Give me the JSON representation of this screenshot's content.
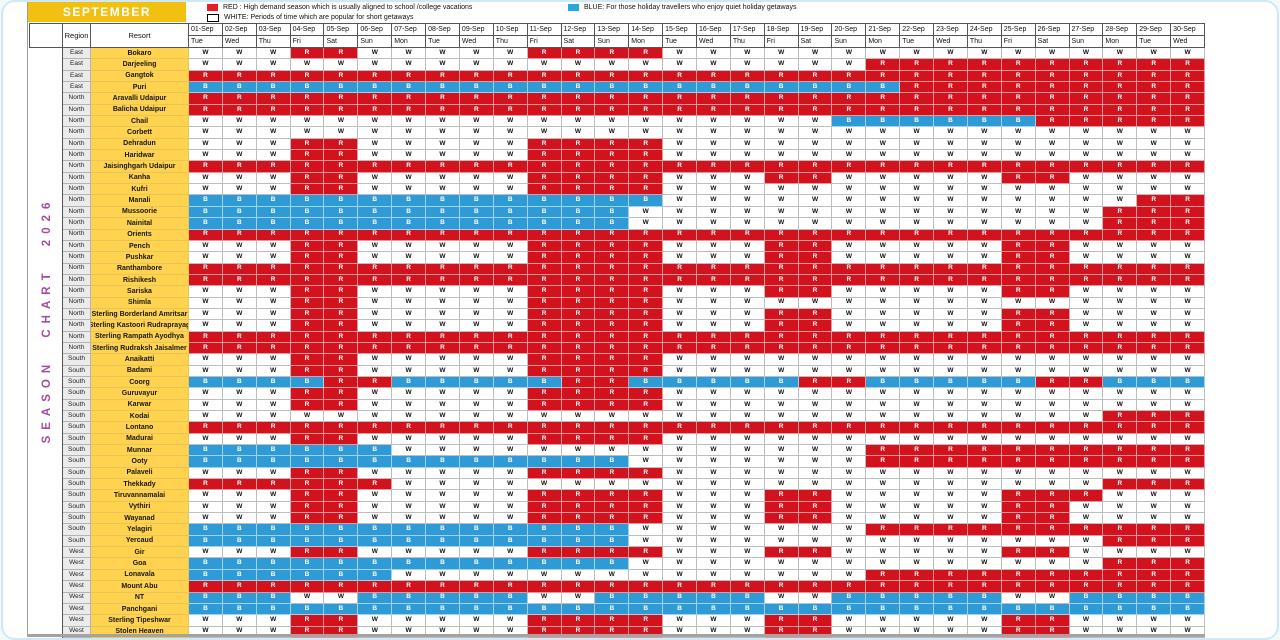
{
  "banner": {
    "month": "SEPTEMBER"
  },
  "vertical_title": "SEASON CHART 2026",
  "legend": [
    {
      "name": "red",
      "swatch": "#EC1C24",
      "text": "RED : High demand season which is usually aligned to school /college vacations"
    },
    {
      "name": "white",
      "swatch": "#FFFFFF",
      "text": "WHITE: Periods of time which are popular for short getaways"
    },
    {
      "name": "blue",
      "swatch": "#29A8DE",
      "text": "BLUE: For those holiday travellers who enjoy quiet holiday getaways"
    }
  ],
  "colors": {
    "banner_bg": "#F2C011",
    "resort_cell_bg": "#FFD34F",
    "region_cell_bg": "#EBEBEB",
    "red_cell": "#D2131E",
    "blue_cell": "#2E9BD6",
    "white_cell": "#FFFFFF",
    "vertical_title": "#A64C9F"
  },
  "chart_data": {
    "type": "heatmap",
    "title": "SEASON CHART 2026",
    "subtitle": "SEPTEMBER",
    "legend_position": "top",
    "value_legend": {
      "R": "High demand season",
      "W": "Popular for short getaways",
      "B": "Quiet holiday getaways"
    },
    "table": {
      "region_header": "Region",
      "resort_header": "Resort",
      "dates": [
        {
          "date": "01-Sep",
          "day": "Tue"
        },
        {
          "date": "02-Sep",
          "day": "Wed"
        },
        {
          "date": "03-Sep",
          "day": "Thu"
        },
        {
          "date": "04-Sep",
          "day": "Fri"
        },
        {
          "date": "05-Sep",
          "day": "Sat"
        },
        {
          "date": "06-Sep",
          "day": "Sun"
        },
        {
          "date": "07-Sep",
          "day": "Mon"
        },
        {
          "date": "08-Sep",
          "day": "Tue"
        },
        {
          "date": "09-Sep",
          "day": "Wed"
        },
        {
          "date": "10-Sep",
          "day": "Thu"
        },
        {
          "date": "11-Sep",
          "day": "Fri"
        },
        {
          "date": "12-Sep",
          "day": "Sat"
        },
        {
          "date": "13-Sep",
          "day": "Sun"
        },
        {
          "date": "14-Sep",
          "day": "Mon"
        },
        {
          "date": "15-Sep",
          "day": "Tue"
        },
        {
          "date": "16-Sep",
          "day": "Wed"
        },
        {
          "date": "17-Sep",
          "day": "Thu"
        },
        {
          "date": "18-Sep",
          "day": "Fri"
        },
        {
          "date": "19-Sep",
          "day": "Sat"
        },
        {
          "date": "20-Sep",
          "day": "Sun"
        },
        {
          "date": "21-Sep",
          "day": "Mon"
        },
        {
          "date": "22-Sep",
          "day": "Tue"
        },
        {
          "date": "23-Sep",
          "day": "Wed"
        },
        {
          "date": "24-Sep",
          "day": "Thu"
        },
        {
          "date": "25-Sep",
          "day": "Fri"
        },
        {
          "date": "26-Sep",
          "day": "Sat"
        },
        {
          "date": "27-Sep",
          "day": "Sun"
        },
        {
          "date": "28-Sep",
          "day": "Mon"
        },
        {
          "date": "29-Sep",
          "day": "Tue"
        },
        {
          "date": "30-Sep",
          "day": "Wed"
        }
      ],
      "rows": [
        {
          "region": "East",
          "resort": "Bokaro",
          "cells": "WWWRRWWWWWRRRRWWWWWWWWWWWWWWWW"
        },
        {
          "region": "East",
          "resort": "Darjeeling",
          "cells": "WWWWWWWWWWWWWWWWWWWWRRRRRRRRRR"
        },
        {
          "region": "East",
          "resort": "Gangtok",
          "cells": "RRRRRRRRRRRRRRRRRRRRRRRRRRRRRR"
        },
        {
          "region": "East",
          "resort": "Puri",
          "cells": "BBBBBBBBBBBBBBBBBBBBBRRRRRRRRR"
        },
        {
          "region": "North",
          "resort": "Aravalli Udaipur",
          "cells": "RRRRRRRRRRRRRRRRRRRRRRRRRRRRRR"
        },
        {
          "region": "North",
          "resort": "Balicha Udaipur",
          "cells": "RRRRRRRRRRRRRRRRRRRRRRRRRRRRRR"
        },
        {
          "region": "North",
          "resort": "Chail",
          "cells": "WWWWWWWWWWWWWWWWWWWBBBBBBRRRRR"
        },
        {
          "region": "North",
          "resort": "Corbett",
          "cells": "WWWWWWWWWWWWWWWWWWWWWWWWWWWWWW"
        },
        {
          "region": "North",
          "resort": "Dehradun",
          "cells": "WWWRRWWWWWRRRRWWWWWWWWWWWWWWWW"
        },
        {
          "region": "North",
          "resort": "Haridwar",
          "cells": "WWWRRWWWWWRRRRWWWWWWWWWWWWWWWW"
        },
        {
          "region": "North",
          "resort": "Jaisinghgarh Udaipur",
          "cells": "RRRRRRRRRRRRRRRRRRRRRRRRRRRRRR"
        },
        {
          "region": "North",
          "resort": "Kanha",
          "cells": "WWWRRWWWWWRRRRWWWRRWWWWWRRWWWW"
        },
        {
          "region": "North",
          "resort": "Kufri",
          "cells": "WWWRRWWWWWRRRRWWWWWWWWWWWWWWWW"
        },
        {
          "region": "North",
          "resort": "Manali",
          "cells": "BBBBBBBBBBBBBBWWWWWWWWWWWWWWRR"
        },
        {
          "region": "North",
          "resort": "Mussoorie",
          "cells": "BBBBBBBBBBBBBWWWWWWWWWWWWWWRRR"
        },
        {
          "region": "North",
          "resort": "Nainital",
          "cells": "BBBBBBBBBBBBBWWWWWWWWWWWWWWRRR"
        },
        {
          "region": "North",
          "resort": "Orients",
          "cells": "RRRRRRRRRRRRRRRRRRRRRRRRRRRRRR"
        },
        {
          "region": "North",
          "resort": "Pench",
          "cells": "WWWRRWWWWWRRRRWWWRRWWWWWRRWWWW"
        },
        {
          "region": "North",
          "resort": "Pushkar",
          "cells": "WWWRRWWWWWRRRRWWWRRWWWWWRRWWWW"
        },
        {
          "region": "North",
          "resort": "Ranthambore",
          "cells": "RRRRRRRRRRRRRRRRRRRRRRRRRRRRRR"
        },
        {
          "region": "North",
          "resort": "Rishikesh",
          "cells": "RRRRRRRRRRRRRRRRRRRRRRRRRRRRRR"
        },
        {
          "region": "North",
          "resort": "Sariska",
          "cells": "WWWRRWWWWWRRRRWWWRRWWWWWRRWWWW"
        },
        {
          "region": "North",
          "resort": "Shimla",
          "cells": "WWWRRWWWWWRRRRWWWWWWWWWWWWWWWW"
        },
        {
          "region": "North",
          "resort": "Sterling Borderland Amritsar",
          "cells": "WWWRRWWWWWRRRRWWWRRWWWWWRRWWWW"
        },
        {
          "region": "North",
          "resort": "Sterling Kastoori Rudraprayag",
          "cells": "WWWRRWWWWWRRRRWWWRRWWWWWRRWWWW"
        },
        {
          "region": "North",
          "resort": "Sterling Rampath Ayodhya",
          "cells": "RRRRRRRRRRRRRRRRRRRRRRRRRRRRRR"
        },
        {
          "region": "North",
          "resort": "Sterling Rudraksh Jaisalmer",
          "cells": "RRRRRRRRRRRRRRRRRRRRRRRRRRRRRR"
        },
        {
          "region": "South",
          "resort": "Anaikatti",
          "cells": "WWWRRWWWWWRRRRWWWWWWWWWWWWWWWW"
        },
        {
          "region": "South",
          "resort": "Badami",
          "cells": "WWWRRWWWWWRRRRWWWWWWWWWWWWWWWW"
        },
        {
          "region": "South",
          "resort": "Coorg",
          "cells": "BBBBRRBBBBBRRBBBBBRRBBBBBRRBBB"
        },
        {
          "region": "South",
          "resort": "Guruvayur",
          "cells": "WWWRRWWWWWRRRRWWWWWWWWWWWWWWWW"
        },
        {
          "region": "South",
          "resort": "Karwar",
          "cells": "WWWRRWWWWWRRRRWWWWWWWWWWWWWWWW"
        },
        {
          "region": "South",
          "resort": "Kodai",
          "cells": "WWWWWWWWWWWWWWWWWWWWWWWWWWWRRR"
        },
        {
          "region": "South",
          "resort": "Lontano",
          "cells": "RRRRRRRRRRRRRRRRRRRRRRRRRRRRRR"
        },
        {
          "region": "South",
          "resort": "Madurai",
          "cells": "WWWRRWWWWWRRRRWWWWWWWWWWWWWWWW"
        },
        {
          "region": "South",
          "resort": "Munnar",
          "cells": "BBBBBBWWWWWWWWWWWWWWRRRRRRRRRR"
        },
        {
          "region": "South",
          "resort": "Ooty",
          "cells": "BBBBBBBBBBBBBWWWWWWWRRRRRRRRRR"
        },
        {
          "region": "South",
          "resort": "Palaveli",
          "cells": "WWWRRWWWWWRRRRWWWWWWWWWWWWWWWW"
        },
        {
          "region": "South",
          "resort": "Thekkady",
          "cells": "RRRRRRWWWWWWWWWWWWWWWWWWWWWRRR"
        },
        {
          "region": "South",
          "resort": "Tiruvannamalai",
          "cells": "WWWRRWWWWWRRRRWWWRRWWWWWRRRWWW"
        },
        {
          "region": "South",
          "resort": "Vythiri",
          "cells": "WWWRRWWWWWRRRRWWWRRWWWWWRRWWWW"
        },
        {
          "region": "South",
          "resort": "Wayanad",
          "cells": "WWWRRWWWWWRRRRWWWRRWWWWWRRWWWW"
        },
        {
          "region": "South",
          "resort": "Yelagiri",
          "cells": "BBBBBBBBBBBBBWWWWWWWRRRRRRRRRR"
        },
        {
          "region": "South",
          "resort": "Yercaud",
          "cells": "BBBBBBBBBBBBBWWWWWWWWWWWWWWRRR"
        },
        {
          "region": "West",
          "resort": "Gir",
          "cells": "WWWRRWWWWWRRRRWWWRRWWWWWRRWWWW"
        },
        {
          "region": "West",
          "resort": "Goa",
          "cells": "BBBBBBBBBBBBBWWWWWWWWWWWWWWRRR"
        },
        {
          "region": "West",
          "resort": "Lonavala",
          "cells": "BBBBBBWWWWWWWWWWWWWWRRRRRRRRRR"
        },
        {
          "region": "West",
          "resort": "Mount Abu",
          "cells": "RRRRRRRRRRRRRRRRRRRRRRRRRRRRRR"
        },
        {
          "region": "West",
          "resort": "NT",
          "cells": "BBBWWBBBBBWWBBBBBWWBBBBBWWBBBB"
        },
        {
          "region": "West",
          "resort": "Panchgani",
          "cells": "BBBBBBBBBBBBBBBBBBBBBBBBBBBBBB"
        },
        {
          "region": "West",
          "resort": "Sterling Tipeshwar",
          "cells": "WWWRRWWWWWRRRRWWWRRWWWWWRRWWWW"
        },
        {
          "region": "West",
          "resort": "Stolen Heaven",
          "cells": "WWWRRWWWWWRRRRWWWRRWWWWWRRWWWW"
        }
      ]
    }
  }
}
